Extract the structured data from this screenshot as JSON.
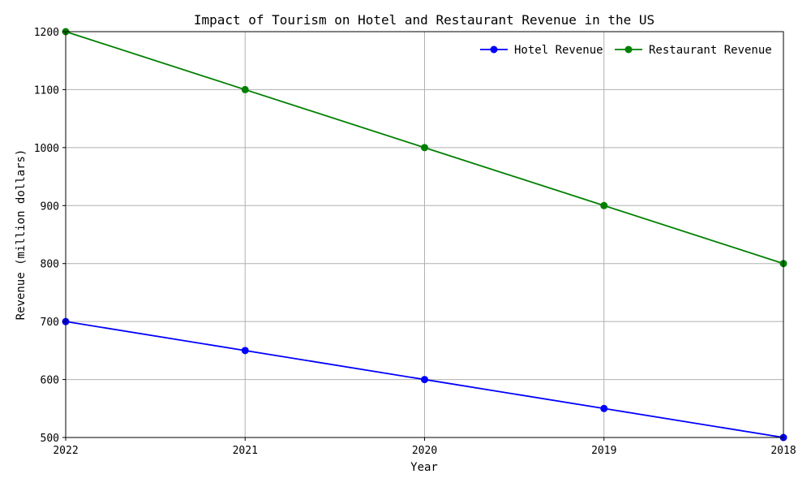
{
  "chart_data": {
    "type": "line",
    "title": "Impact of Tourism on Hotel and Restaurant Revenue in the US",
    "xlabel": "Year",
    "ylabel": "Revenue (million dollars)",
    "x": [
      "2022",
      "2021",
      "2020",
      "2019",
      "2018"
    ],
    "ylim": [
      500,
      1200
    ],
    "yticks": [
      "500",
      "600",
      "700",
      "800",
      "900",
      "1000",
      "1100",
      "1200"
    ],
    "grid": true,
    "legend_position": "top-right",
    "series": [
      {
        "name": "Hotel Revenue",
        "color": "#0000ff",
        "marker": "circle",
        "values": [
          700,
          650,
          600,
          550,
          500
        ]
      },
      {
        "name": "Restaurant Revenue",
        "color": "#008000",
        "marker": "circle",
        "values": [
          1200,
          1100,
          1000,
          900,
          800
        ]
      }
    ]
  }
}
